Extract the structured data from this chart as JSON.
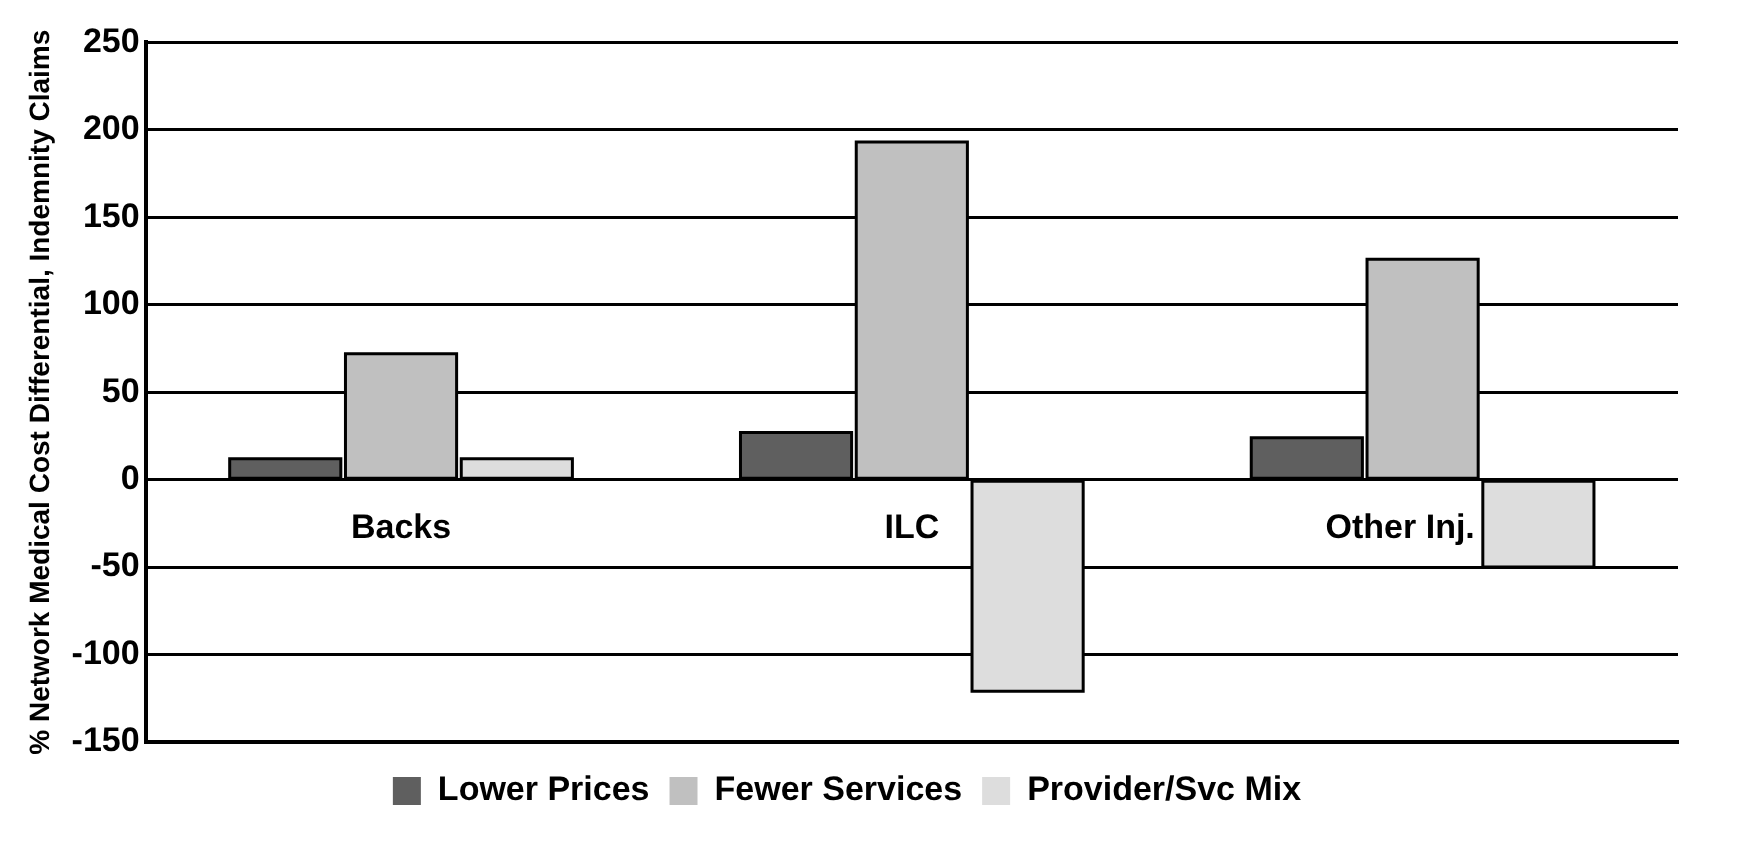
{
  "chart_data": {
    "type": "bar",
    "ylabel": "% Network Medical Cost Differential, Indemnity Claims",
    "categories": [
      "Backs",
      "ILC",
      "Other Inj."
    ],
    "series": [
      {
        "name": "Lower Prices",
        "color": "#5f5f5f",
        "values": [
          12,
          27,
          24
        ]
      },
      {
        "name": "Fewer Services",
        "color": "#c0c0c0",
        "values": [
          72,
          193,
          126
        ]
      },
      {
        "name": "Provider/Svc Mix",
        "color": "#dddddd",
        "values": [
          12,
          -121,
          -50
        ]
      }
    ],
    "ylim": [
      -150,
      250
    ],
    "yticks": [
      -150,
      -100,
      -50,
      0,
      50,
      100,
      150,
      200,
      250
    ],
    "grid": "y",
    "legend": "bottom"
  }
}
